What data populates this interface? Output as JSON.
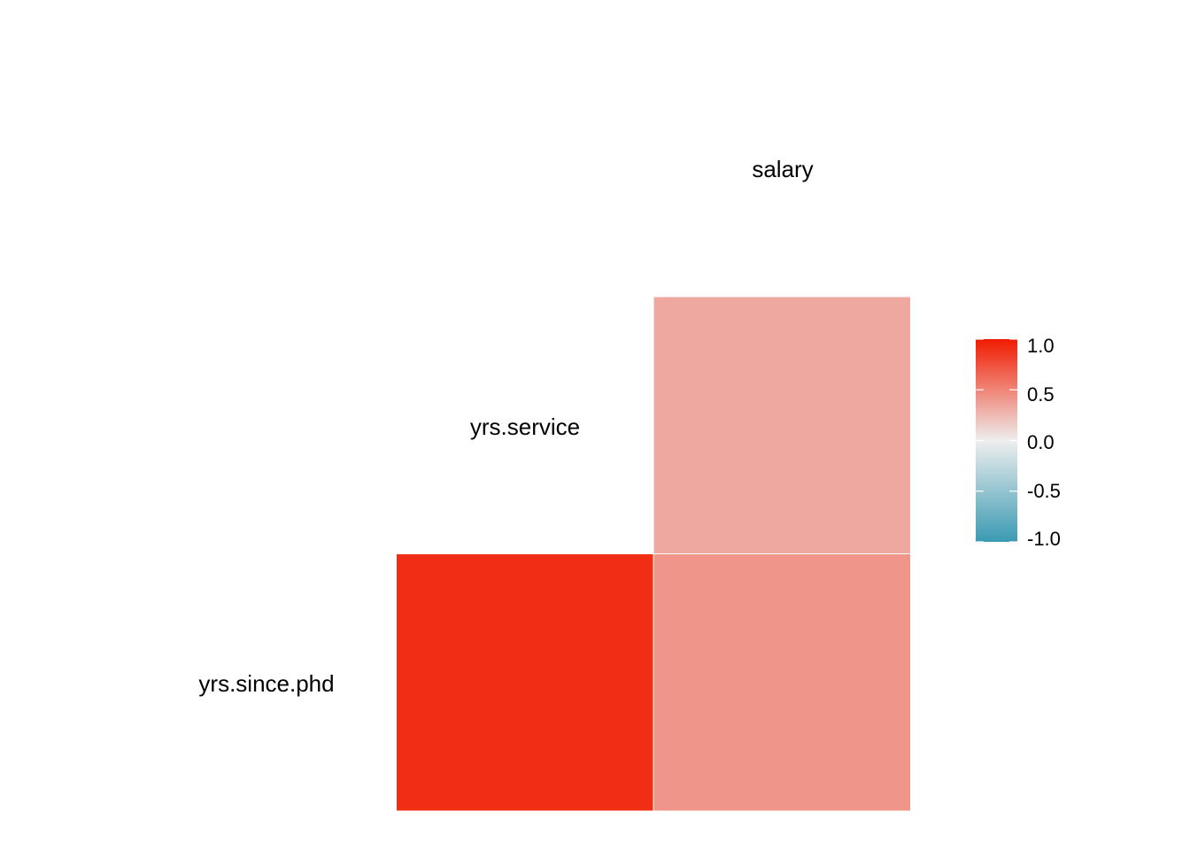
{
  "chart_data": {
    "type": "heatmap",
    "title": "",
    "variables": [
      "yrs.since.phd",
      "yrs.service",
      "salary"
    ],
    "cells": [
      {
        "row": "yrs.since.phd",
        "col": "yrs.service",
        "value": 0.91
      },
      {
        "row": "yrs.since.phd",
        "col": "salary",
        "value": 0.42
      },
      {
        "row": "yrs.service",
        "col": "salary",
        "value": 0.33
      }
    ],
    "legend": {
      "position": "right",
      "range": [
        -1.0,
        1.0
      ],
      "ticks": [
        "1.0",
        "0.5",
        "0.0",
        "-0.5",
        "-1.0"
      ],
      "tick_values": [
        1.0,
        0.5,
        0.0,
        -0.5,
        -1.0
      ],
      "colors": {
        "low": "#3A9AB2",
        "mid": "#EEEEEE",
        "high": "#F11B00"
      }
    }
  }
}
